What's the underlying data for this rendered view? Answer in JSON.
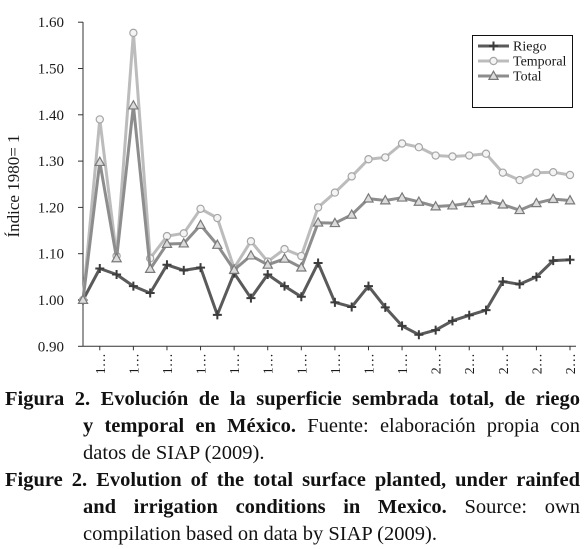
{
  "chart_data": {
    "type": "line",
    "ylabel": "Índice 1980= 1",
    "ylim": [
      0.9,
      1.6
    ],
    "y_tick_labels": [
      "0.90",
      "1.00",
      "1.10",
      "1.20",
      "1.30",
      "1.40",
      "1.50",
      "1.60"
    ],
    "x_tick_labels": [
      "1…",
      "1…",
      "1…",
      "1…",
      "1…",
      "1…",
      "1…",
      "1…",
      "1…",
      "1…",
      "2…",
      "2…",
      "2…",
      "2…",
      "2…"
    ],
    "grid": false,
    "legend_position": "top-right",
    "series": [
      {
        "name": "Riego",
        "color": "#5a5a5a",
        "marker": "plus",
        "marker_fill": "#3c3c3c",
        "marker_stroke": "#3c3c3c",
        "values": [
          1.0,
          1.068,
          1.055,
          1.03,
          1.015,
          1.076,
          1.064,
          1.07,
          0.968,
          1.058,
          1.004,
          1.055,
          1.03,
          1.007,
          1.08,
          0.995,
          0.985,
          1.03,
          0.984,
          0.944,
          0.925,
          0.935,
          0.955,
          0.967,
          0.978,
          1.04,
          1.034,
          1.05,
          1.085,
          1.087
        ]
      },
      {
        "name": "Temporal",
        "color": "#bcbcbc",
        "marker": "circle",
        "marker_fill": "#f4f4f4",
        "marker_stroke": "#a6a6a6",
        "values": [
          1.0,
          1.39,
          1.095,
          1.577,
          1.09,
          1.138,
          1.144,
          1.197,
          1.177,
          1.069,
          1.127,
          1.083,
          1.11,
          1.095,
          1.2,
          1.232,
          1.267,
          1.304,
          1.308,
          1.338,
          1.33,
          1.312,
          1.31,
          1.312,
          1.316,
          1.275,
          1.259,
          1.275,
          1.276,
          1.27
        ]
      },
      {
        "name": "Total",
        "color": "#8d8d8d",
        "marker": "triangle",
        "marker_fill": "#dcdcdc",
        "marker_stroke": "#7a7a7a",
        "values": [
          1.0,
          1.298,
          1.09,
          1.42,
          1.067,
          1.121,
          1.122,
          1.162,
          1.119,
          1.065,
          1.096,
          1.076,
          1.089,
          1.07,
          1.167,
          1.166,
          1.184,
          1.219,
          1.215,
          1.221,
          1.212,
          1.202,
          1.204,
          1.209,
          1.215,
          1.206,
          1.194,
          1.209,
          1.218,
          1.215
        ]
      }
    ]
  },
  "caption": [
    {
      "label": "Figura 2.",
      "lines": [
        {
          "bold": "Evolución de la superficie sembrada total, de riego"
        },
        {
          "bold": "y temporal en México.",
          "regular": "Fuente: elaboración propia con"
        },
        {
          "regular": "datos de SIAP (2009)."
        }
      ]
    },
    {
      "label": "Figure 2.",
      "lines": [
        {
          "bold": "Evolution of the total surface planted, under rainfed"
        },
        {
          "bold": "and irrigation conditions in Mexico.",
          "regular": "Source: own"
        },
        {
          "regular": "compilation based on data by SIAP (2009)."
        }
      ]
    }
  ]
}
